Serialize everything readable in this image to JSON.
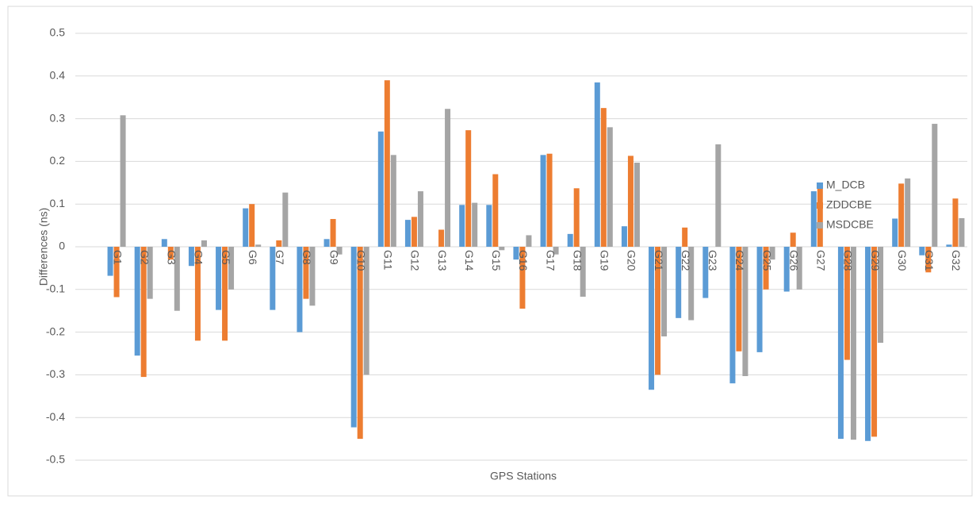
{
  "chart_data": {
    "type": "bar",
    "x_label": "GPS Stations",
    "y_label": "Differences (ns)",
    "categories": [
      "G1",
      "G2",
      "G3",
      "G4",
      "G5",
      "G6",
      "G7",
      "G8",
      "G9",
      "G10",
      "G11",
      "G12",
      "G13",
      "G14",
      "G15",
      "G16",
      "G17",
      "G18",
      "G19",
      "G20",
      "G21",
      "G22",
      "G23",
      "G24",
      "G25",
      "G26",
      "G27",
      "G28",
      "G29",
      "G30",
      "G31",
      "G32"
    ],
    "series": [
      {
        "name": "M_DCB",
        "color": "#5b9bd5",
        "values": [
          -0.068,
          -0.255,
          0.018,
          -0.045,
          -0.148,
          0.09,
          -0.148,
          -0.2,
          0.018,
          -0.423,
          0.27,
          0.063,
          0,
          0.098,
          0.098,
          -0.03,
          0.215,
          0.03,
          0.385,
          0.048,
          -0.335,
          -0.167,
          -0.12,
          -0.32,
          -0.247,
          -0.105,
          0.13,
          -0.45,
          -0.455,
          0.066,
          -0.02,
          0.005
        ]
      },
      {
        "name": "ZDDCBE",
        "color": "#ed7d31",
        "values": [
          -0.118,
          -0.305,
          -0.03,
          -0.22,
          -0.22,
          0.1,
          0.015,
          -0.122,
          0.065,
          -0.45,
          0.39,
          0.07,
          0.04,
          0.273,
          0.17,
          -0.145,
          0.218,
          0.137,
          0.325,
          0.213,
          -0.3,
          0.045,
          0,
          -0.245,
          -0.1,
          0.033,
          0.147,
          -0.265,
          -0.445,
          0.148,
          -0.06,
          0.113
        ]
      },
      {
        "name": "MSDCBE",
        "color": "#a5a5a5",
        "values": [
          0.308,
          -0.122,
          -0.15,
          0.015,
          -0.1,
          0.005,
          0.127,
          -0.138,
          -0.018,
          -0.3,
          0.215,
          0.13,
          0.323,
          0.103,
          -0.008,
          0.027,
          -0.018,
          -0.117,
          0.28,
          0.197,
          -0.21,
          -0.172,
          0.24,
          -0.303,
          -0.03,
          -0.1,
          0,
          -0.452,
          -0.225,
          0.16,
          0.288,
          0.067
        ]
      }
    ],
    "ylim": [
      -0.5,
      0.5
    ],
    "yticks": [
      0.5,
      0.4,
      0.3,
      0.2,
      0.1,
      0,
      -0.1,
      -0.2,
      -0.3,
      -0.4,
      -0.5
    ],
    "grid": true,
    "legend": "top-right"
  }
}
